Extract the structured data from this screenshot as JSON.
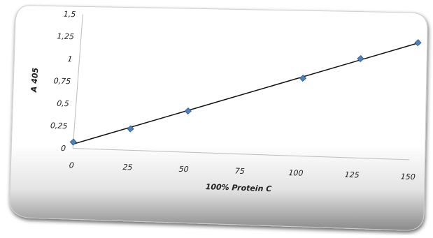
{
  "chart_data": {
    "type": "scatter",
    "title": "",
    "xlabel": "100% Protein C",
    "ylabel": "A 405",
    "xlim": [
      0,
      150
    ],
    "ylim": [
      0,
      1.5
    ],
    "xticks": [
      "0",
      "25",
      "50",
      "75",
      "100",
      "125",
      "150"
    ],
    "yticks": [
      "0",
      "0,25",
      "0,5",
      "0,75",
      "1",
      "1,25",
      "1,5"
    ],
    "grid": false,
    "legend": "none",
    "series": [
      {
        "marker": "diamond",
        "color": "#4f81bd",
        "points": [
          {
            "x": 0,
            "y": 0.07
          },
          {
            "x": 25,
            "y": 0.24
          },
          {
            "x": 50,
            "y": 0.46
          },
          {
            "x": 100,
            "y": 0.87
          },
          {
            "x": 125,
            "y": 1.11
          },
          {
            "x": 150,
            "y": 1.31
          }
        ]
      }
    ],
    "trendline": {
      "type": "linear",
      "color": "#111111"
    }
  }
}
